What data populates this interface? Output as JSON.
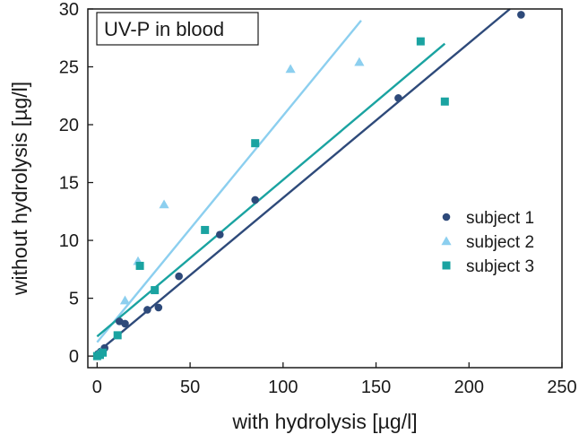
{
  "chart_data": {
    "type": "scatter",
    "title": "UV-P in blood",
    "xlabel": "with hydrolysis [µg/l]",
    "ylabel": "without hydrolysis [µg/l]",
    "xlim": [
      -5,
      250
    ],
    "ylim": [
      -1,
      30
    ],
    "xticks": [
      0,
      50,
      100,
      150,
      200,
      250
    ],
    "yticks": [
      0,
      5,
      10,
      15,
      20,
      25,
      30
    ],
    "legend_position": "right",
    "series": [
      {
        "name": "subject 1",
        "marker": "circle",
        "color": "#2e4a7a",
        "points": [
          [
            0.5,
            0.2
          ],
          [
            2,
            0.4
          ],
          [
            4,
            0.7
          ],
          [
            12,
            3.0
          ],
          [
            15,
            2.8
          ],
          [
            27,
            4.0
          ],
          [
            33,
            4.2
          ],
          [
            44,
            6.9
          ],
          [
            66,
            10.5
          ],
          [
            85,
            13.5
          ],
          [
            162,
            22.3
          ],
          [
            228,
            29.5
          ]
        ],
        "fit_line": [
          [
            0,
            0.3
          ],
          [
            222,
            30
          ]
        ]
      },
      {
        "name": "subject 2",
        "marker": "triangle",
        "color": "#8ccfef",
        "points": [
          [
            0.5,
            0.1
          ],
          [
            2,
            0.3
          ],
          [
            15,
            4.8
          ],
          [
            22,
            8.2
          ],
          [
            36,
            13.1
          ],
          [
            104,
            24.8
          ],
          [
            141,
            25.4
          ]
        ],
        "fit_line": [
          [
            0,
            1.2
          ],
          [
            142,
            29
          ]
        ]
      },
      {
        "name": "subject 3",
        "marker": "square",
        "color": "#1aa3a1",
        "points": [
          [
            0,
            0.0
          ],
          [
            1.5,
            0.1
          ],
          [
            3,
            0.3
          ],
          [
            11,
            1.8
          ],
          [
            23,
            7.8
          ],
          [
            31,
            5.7
          ],
          [
            58,
            10.9
          ],
          [
            85,
            18.4
          ],
          [
            174,
            27.2
          ],
          [
            187,
            22.0
          ]
        ],
        "fit_line": [
          [
            0,
            1.7
          ],
          [
            187,
            27
          ]
        ]
      }
    ]
  }
}
